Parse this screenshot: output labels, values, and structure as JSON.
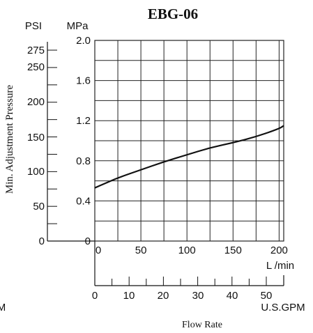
{
  "chart_data": {
    "type": "line",
    "title": "EBG-06",
    "ylabel": "Min. Adjustment Pressure",
    "xlabel": "Flow Rate",
    "y_axis_left": {
      "unit": "PSI",
      "ticks": [
        "275",
        "250",
        "200",
        "150",
        "100",
        "50",
        "0"
      ]
    },
    "y_axis": {
      "unit": "MPa",
      "ticks": [
        "2.0",
        "1.6",
        "1.2",
        "0.8",
        "0.4",
        "0"
      ],
      "ylim": [
        0,
        2.0
      ]
    },
    "x_axis": {
      "unit": "L /min",
      "ticks": [
        "0",
        "50",
        "100",
        "150",
        "200"
      ],
      "xlim": [
        0,
        205
      ]
    },
    "x_axis_secondary": {
      "unit": "U.S.GPM",
      "ticks": [
        "0",
        "10",
        "20",
        "30",
        "40",
        "50"
      ],
      "left_fragment": "M"
    },
    "grid": true,
    "series": [
      {
        "x": [
          0,
          10,
          25,
          50,
          75,
          100,
          125,
          150,
          175,
          200,
          205
        ],
        "values": [
          0.53,
          0.57,
          0.63,
          0.71,
          0.79,
          0.86,
          0.93,
          0.98,
          1.04,
          1.12,
          1.15
        ]
      }
    ]
  },
  "colors": {
    "line": "#111111",
    "grid": "#222222",
    "background": "#ffffff"
  }
}
